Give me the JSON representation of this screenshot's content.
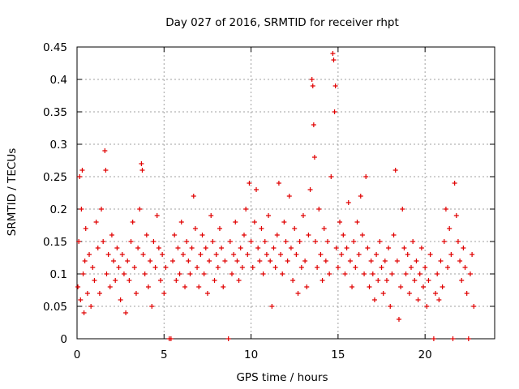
{
  "chart_data": {
    "type": "scatter",
    "title": "Day 027 of 2016, SRMTID for receiver rhpt",
    "xlabel": "GPS time / hours",
    "ylabel": "SRMTID / TECUs",
    "xlim": [
      0,
      24
    ],
    "ylim": [
      0,
      0.45
    ],
    "x_ticks": [
      0,
      5,
      10,
      15,
      20
    ],
    "y_ticks": [
      0,
      0.05,
      0.1,
      0.15,
      0.2,
      0.25,
      0.3,
      0.35,
      0.4,
      0.45
    ],
    "x_tick_labels": [
      "0",
      "5",
      "10",
      "15",
      "20"
    ],
    "y_tick_labels": [
      "0",
      "0.05",
      "0.1",
      "0.15",
      "0.2",
      "0.25",
      "0.3",
      "0.35",
      "0.4",
      "0.45"
    ],
    "grid": true,
    "marker": "+",
    "color": "#e00000",
    "series": [
      {
        "name": "SRMTID",
        "points": [
          [
            0.05,
            0.08
          ],
          [
            0.1,
            0.15
          ],
          [
            0.15,
            0.25
          ],
          [
            0.2,
            0.06
          ],
          [
            0.25,
            0.2
          ],
          [
            0.3,
            0.26
          ],
          [
            0.35,
            0.1
          ],
          [
            0.4,
            0.04
          ],
          [
            0.45,
            0.12
          ],
          [
            0.5,
            0.17
          ],
          [
            0.6,
            0.07
          ],
          [
            0.7,
            0.13
          ],
          [
            0.8,
            0.05
          ],
          [
            0.9,
            0.11
          ],
          [
            1.0,
            0.09
          ],
          [
            1.1,
            0.18
          ],
          [
            1.2,
            0.14
          ],
          [
            1.3,
            0.07
          ],
          [
            1.4,
            0.2
          ],
          [
            1.5,
            0.15
          ],
          [
            1.6,
            0.29
          ],
          [
            1.65,
            0.26
          ],
          [
            1.7,
            0.1
          ],
          [
            1.8,
            0.13
          ],
          [
            1.9,
            0.08
          ],
          [
            2.0,
            0.16
          ],
          [
            2.1,
            0.12
          ],
          [
            2.2,
            0.09
          ],
          [
            2.3,
            0.14
          ],
          [
            2.4,
            0.11
          ],
          [
            2.5,
            0.06
          ],
          [
            2.6,
            0.13
          ],
          [
            2.7,
            0.1
          ],
          [
            2.8,
            0.04
          ],
          [
            2.9,
            0.12
          ],
          [
            3.0,
            0.09
          ],
          [
            3.1,
            0.15
          ],
          [
            3.2,
            0.18
          ],
          [
            3.3,
            0.11
          ],
          [
            3.4,
            0.07
          ],
          [
            3.5,
            0.14
          ],
          [
            3.6,
            0.2
          ],
          [
            3.7,
            0.27
          ],
          [
            3.75,
            0.26
          ],
          [
            3.8,
            0.13
          ],
          [
            3.9,
            0.1
          ],
          [
            4.0,
            0.16
          ],
          [
            4.1,
            0.08
          ],
          [
            4.2,
            0.12
          ],
          [
            4.3,
            0.05
          ],
          [
            4.4,
            0.15
          ],
          [
            4.5,
            0.11
          ],
          [
            4.6,
            0.19
          ],
          [
            4.7,
            0.14
          ],
          [
            4.8,
            0.09
          ],
          [
            4.9,
            0.13
          ],
          [
            5.0,
            0.07
          ],
          [
            5.1,
            0.11
          ],
          [
            5.3,
            0.0
          ],
          [
            5.4,
            0.0
          ],
          [
            5.5,
            0.12
          ],
          [
            5.6,
            0.16
          ],
          [
            5.7,
            0.09
          ],
          [
            5.8,
            0.14
          ],
          [
            5.9,
            0.1
          ],
          [
            6.0,
            0.18
          ],
          [
            6.1,
            0.13
          ],
          [
            6.2,
            0.08
          ],
          [
            6.3,
            0.15
          ],
          [
            6.4,
            0.12
          ],
          [
            6.5,
            0.1
          ],
          [
            6.6,
            0.14
          ],
          [
            6.7,
            0.22
          ],
          [
            6.8,
            0.17
          ],
          [
            6.9,
            0.11
          ],
          [
            7.0,
            0.08
          ],
          [
            7.1,
            0.13
          ],
          [
            7.2,
            0.16
          ],
          [
            7.3,
            0.1
          ],
          [
            7.4,
            0.14
          ],
          [
            7.5,
            0.07
          ],
          [
            7.6,
            0.12
          ],
          [
            7.7,
            0.19
          ],
          [
            7.8,
            0.15
          ],
          [
            7.9,
            0.09
          ],
          [
            8.0,
            0.13
          ],
          [
            8.1,
            0.11
          ],
          [
            8.2,
            0.17
          ],
          [
            8.3,
            0.14
          ],
          [
            8.4,
            0.08
          ],
          [
            8.5,
            0.12
          ],
          [
            8.7,
            0.0
          ],
          [
            8.8,
            0.15
          ],
          [
            8.9,
            0.1
          ],
          [
            9.0,
            0.13
          ],
          [
            9.1,
            0.18
          ],
          [
            9.2,
            0.12
          ],
          [
            9.3,
            0.09
          ],
          [
            9.4,
            0.14
          ],
          [
            9.5,
            0.11
          ],
          [
            9.6,
            0.16
          ],
          [
            9.7,
            0.2
          ],
          [
            9.8,
            0.13
          ],
          [
            9.9,
            0.24
          ],
          [
            10.0,
            0.15
          ],
          [
            10.1,
            0.11
          ],
          [
            10.2,
            0.18
          ],
          [
            10.3,
            0.23
          ],
          [
            10.4,
            0.14
          ],
          [
            10.5,
            0.12
          ],
          [
            10.6,
            0.17
          ],
          [
            10.7,
            0.1
          ],
          [
            10.8,
            0.15
          ],
          [
            10.9,
            0.13
          ],
          [
            11.0,
            0.19
          ],
          [
            11.1,
            0.12
          ],
          [
            11.2,
            0.05
          ],
          [
            11.3,
            0.14
          ],
          [
            11.4,
            0.11
          ],
          [
            11.5,
            0.16
          ],
          [
            11.6,
            0.24
          ],
          [
            11.7,
            0.13
          ],
          [
            11.8,
            0.1
          ],
          [
            11.9,
            0.18
          ],
          [
            12.0,
            0.15
          ],
          [
            12.1,
            0.12
          ],
          [
            12.2,
            0.22
          ],
          [
            12.3,
            0.14
          ],
          [
            12.4,
            0.09
          ],
          [
            12.5,
            0.17
          ],
          [
            12.6,
            0.13
          ],
          [
            12.7,
            0.07
          ],
          [
            12.8,
            0.15
          ],
          [
            12.9,
            0.11
          ],
          [
            13.0,
            0.19
          ],
          [
            13.1,
            0.12
          ],
          [
            13.2,
            0.08
          ],
          [
            13.3,
            0.16
          ],
          [
            13.4,
            0.23
          ],
          [
            13.5,
            0.4
          ],
          [
            13.55,
            0.39
          ],
          [
            13.6,
            0.33
          ],
          [
            13.65,
            0.28
          ],
          [
            13.7,
            0.15
          ],
          [
            13.8,
            0.11
          ],
          [
            13.9,
            0.2
          ],
          [
            14.0,
            0.13
          ],
          [
            14.1,
            0.09
          ],
          [
            14.2,
            0.17
          ],
          [
            14.3,
            0.12
          ],
          [
            14.4,
            0.15
          ],
          [
            14.5,
            0.1
          ],
          [
            14.6,
            0.25
          ],
          [
            14.7,
            0.44
          ],
          [
            14.75,
            0.43
          ],
          [
            14.8,
            0.35
          ],
          [
            14.85,
            0.39
          ],
          [
            14.9,
            0.14
          ],
          [
            15.0,
            0.11
          ],
          [
            15.1,
            0.18
          ],
          [
            15.2,
            0.13
          ],
          [
            15.3,
            0.16
          ],
          [
            15.4,
            0.1
          ],
          [
            15.5,
            0.14
          ],
          [
            15.6,
            0.21
          ],
          [
            15.7,
            0.12
          ],
          [
            15.8,
            0.08
          ],
          [
            15.9,
            0.15
          ],
          [
            16.0,
            0.11
          ],
          [
            16.1,
            0.18
          ],
          [
            16.2,
            0.13
          ],
          [
            16.3,
            0.22
          ],
          [
            16.4,
            0.16
          ],
          [
            16.5,
            0.1
          ],
          [
            16.6,
            0.25
          ],
          [
            16.7,
            0.14
          ],
          [
            16.8,
            0.08
          ],
          [
            16.9,
            0.12
          ],
          [
            17.0,
            0.1
          ],
          [
            17.1,
            0.06
          ],
          [
            17.2,
            0.13
          ],
          [
            17.3,
            0.09
          ],
          [
            17.4,
            0.15
          ],
          [
            17.5,
            0.11
          ],
          [
            17.6,
            0.07
          ],
          [
            17.7,
            0.12
          ],
          [
            17.8,
            0.09
          ],
          [
            17.9,
            0.14
          ],
          [
            18.0,
            0.05
          ],
          [
            18.1,
            0.1
          ],
          [
            18.2,
            0.16
          ],
          [
            18.3,
            0.26
          ],
          [
            18.4,
            0.12
          ],
          [
            18.5,
            0.03
          ],
          [
            18.6,
            0.08
          ],
          [
            18.7,
            0.2
          ],
          [
            18.8,
            0.14
          ],
          [
            18.9,
            0.1
          ],
          [
            19.0,
            0.13
          ],
          [
            19.1,
            0.07
          ],
          [
            19.2,
            0.11
          ],
          [
            19.3,
            0.15
          ],
          [
            19.4,
            0.09
          ],
          [
            19.5,
            0.12
          ],
          [
            19.6,
            0.06
          ],
          [
            19.7,
            0.1
          ],
          [
            19.8,
            0.14
          ],
          [
            19.9,
            0.08
          ],
          [
            20.0,
            0.11
          ],
          [
            20.1,
            0.05
          ],
          [
            20.2,
            0.09
          ],
          [
            20.3,
            0.13
          ],
          [
            20.5,
            0.0
          ],
          [
            20.6,
            0.07
          ],
          [
            20.7,
            0.1
          ],
          [
            20.8,
            0.06
          ],
          [
            20.9,
            0.12
          ],
          [
            21.0,
            0.08
          ],
          [
            21.1,
            0.15
          ],
          [
            21.2,
            0.2
          ],
          [
            21.3,
            0.11
          ],
          [
            21.4,
            0.17
          ],
          [
            21.5,
            0.13
          ],
          [
            21.6,
            0.0
          ],
          [
            21.7,
            0.24
          ],
          [
            21.8,
            0.19
          ],
          [
            21.9,
            0.15
          ],
          [
            22.0,
            0.12
          ],
          [
            22.1,
            0.09
          ],
          [
            22.2,
            0.14
          ],
          [
            22.3,
            0.11
          ],
          [
            22.4,
            0.07
          ],
          [
            22.5,
            0.0
          ],
          [
            22.6,
            0.1
          ],
          [
            22.7,
            0.13
          ],
          [
            22.8,
            0.05
          ]
        ]
      }
    ]
  }
}
